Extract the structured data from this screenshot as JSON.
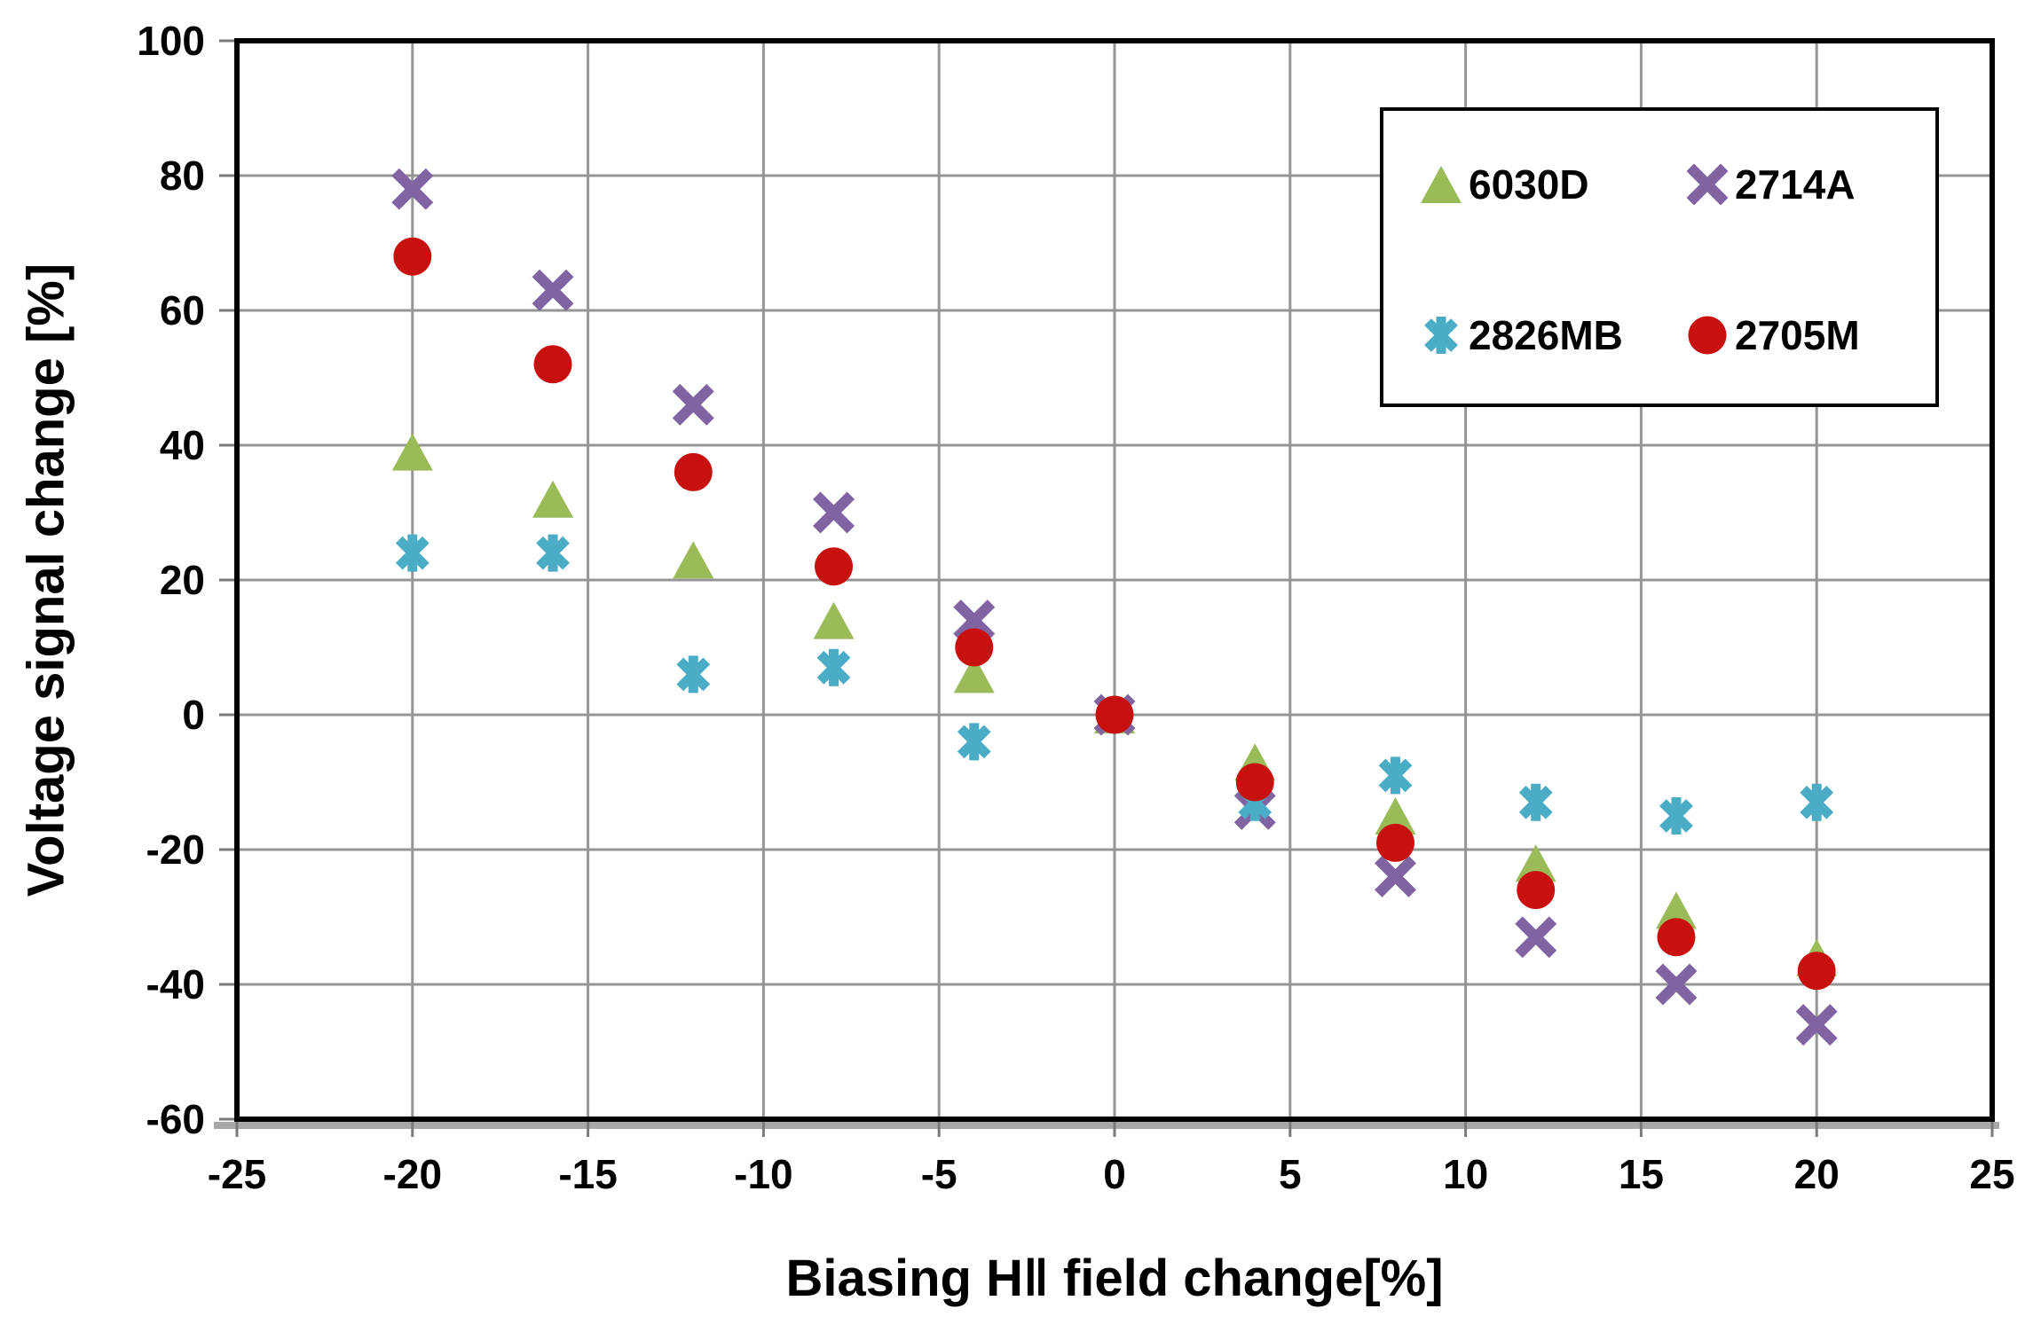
{
  "chart_data": {
    "type": "scatter",
    "title": "",
    "xlabel": "Biasing H‖ field change[%]",
    "ylabel": "Voltage signal change [%]",
    "xlim": [
      -25,
      25
    ],
    "ylim": [
      -60,
      100
    ],
    "x_ticks": [
      -25,
      -20,
      -15,
      -10,
      -5,
      0,
      5,
      10,
      15,
      20,
      25
    ],
    "y_ticks": [
      100,
      80,
      60,
      40,
      20,
      0,
      -20,
      -40,
      -60
    ],
    "grid": true,
    "legend_position": "top-right",
    "x": [
      -20,
      -16,
      -12,
      -8,
      -4,
      0,
      4,
      8,
      12,
      16,
      20
    ],
    "series": [
      {
        "name": "6030D",
        "marker": "triangle",
        "color": "#9BBB59",
        "values": [
          39,
          32,
          23,
          14,
          6,
          0,
          -7,
          -15,
          -22,
          -29,
          -36
        ]
      },
      {
        "name": "2714A",
        "marker": "x",
        "color": "#8064A2",
        "values": [
          78,
          63,
          46,
          30,
          14,
          0,
          -14,
          -24,
          -33,
          -40,
          -46
        ]
      },
      {
        "name": "2826MB",
        "marker": "star",
        "color": "#4BACC6",
        "values": [
          24,
          24,
          6,
          7,
          -4,
          0,
          -13,
          -9,
          -13,
          -15,
          -13
        ]
      },
      {
        "name": "2705M",
        "marker": "circle",
        "color": "#C8100E",
        "values": [
          68,
          52,
          36,
          22,
          10,
          0,
          -10,
          -19,
          -26,
          -33,
          -38
        ]
      }
    ],
    "gridline_color": "#959595",
    "border_color": "#000000",
    "shadow_color": "#a8a8a8",
    "tick_color": "#7a7a7a"
  }
}
